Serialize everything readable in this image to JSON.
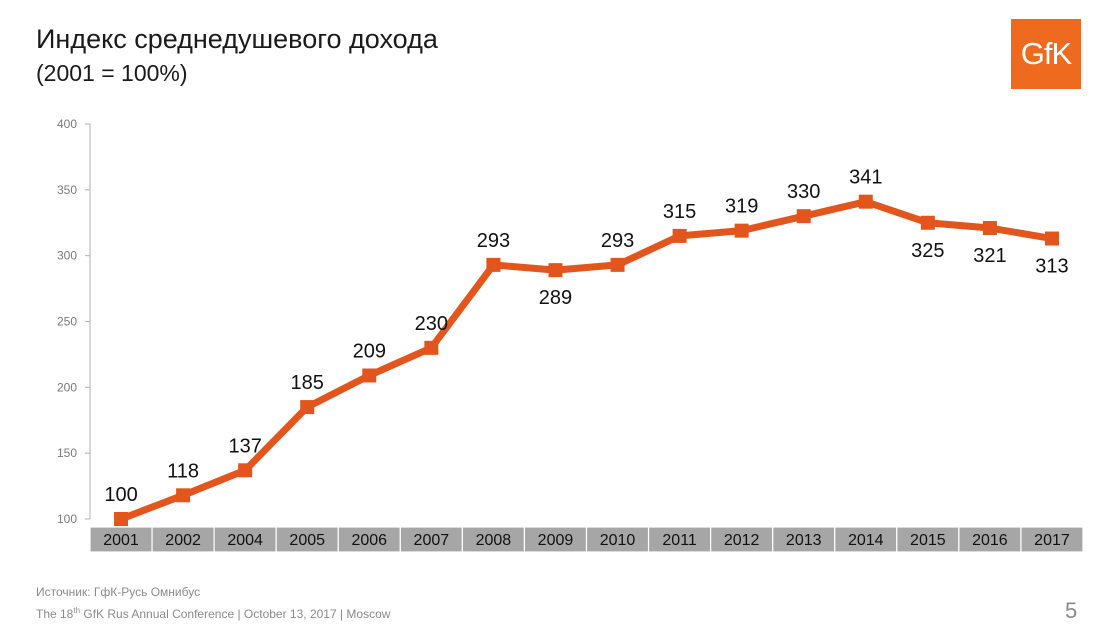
{
  "header": {
    "title": "Индекс среднедушевого дохода",
    "subtitle": "(2001 = 100%)"
  },
  "logo": {
    "text": "GfK",
    "color": "#ee6a1f"
  },
  "footer": {
    "source": "Источник: ГфК-Русь Омнибус",
    "conf_prefix": "The 18",
    "conf_sup": "th",
    "conf_rest": " GfK Rus Annual Conference | October 13, 2017 | Moscow",
    "page_number": "5"
  },
  "chart_data": {
    "type": "line",
    "categories": [
      "2001",
      "2002",
      "2004",
      "2005",
      "2006",
      "2007",
      "2008",
      "2009",
      "2010",
      "2011",
      "2012",
      "2013",
      "2014",
      "2015",
      "2016",
      "2017"
    ],
    "series": [
      {
        "values": [
          100,
          118,
          137,
          185,
          209,
          230,
          293,
          289,
          293,
          315,
          319,
          330,
          341,
          325,
          321,
          313
        ],
        "color": "#e2561d"
      }
    ],
    "data_labels": [
      "100",
      "118",
      "137",
      "185",
      "209",
      "230",
      "293",
      "289",
      "293",
      "315",
      "319",
      "330",
      "341",
      "325",
      "321",
      "313"
    ],
    "yticks": [
      "100",
      "150",
      "200",
      "250",
      "300",
      "350",
      "400"
    ],
    "ylim": [
      100,
      400
    ],
    "grid": false,
    "category_box_color": "#a6a6a6"
  }
}
